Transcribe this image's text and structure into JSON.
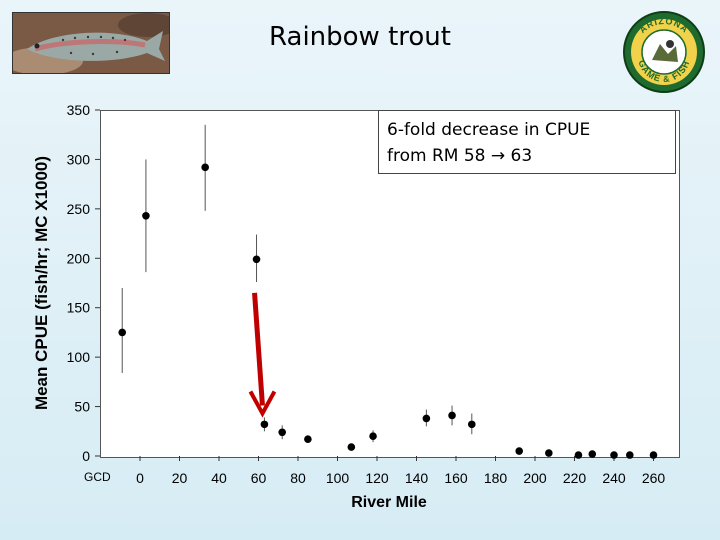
{
  "header": {
    "title": "Rainbow trout"
  },
  "callout": {
    "line1": "6-fold decrease in CPUE",
    "line2": "from RM 58 → 63"
  },
  "photo": {
    "icon": "rainbow-trout-photo"
  },
  "logo": {
    "icon": "arizona-game-and-fish-logo",
    "text": "ARIZONA GAME & FISH"
  },
  "chart_data": {
    "type": "scatter",
    "title": "Rainbow trout",
    "xlabel": "River Mile",
    "ylabel": "Mean CPUE (fish/hr; MC X1000)",
    "xlim": [
      -10,
      270
    ],
    "ylim": [
      0,
      350
    ],
    "xticks": [
      0,
      20,
      40,
      60,
      80,
      100,
      120,
      140,
      160,
      180,
      200,
      220,
      240,
      260
    ],
    "yticks": [
      0,
      50,
      100,
      150,
      200,
      250,
      300,
      350
    ],
    "extra_xtick_label": "GCD",
    "points": [
      {
        "x": -9,
        "y": 125,
        "lo": 84,
        "hi": 170
      },
      {
        "x": 3,
        "y": 243,
        "lo": 186,
        "hi": 300
      },
      {
        "x": 33,
        "y": 292,
        "lo": 248,
        "hi": 335
      },
      {
        "x": 59,
        "y": 199,
        "lo": 176,
        "hi": 224
      },
      {
        "x": 63,
        "y": 32,
        "lo": 25,
        "hi": 39
      },
      {
        "x": 72,
        "y": 24,
        "lo": 17,
        "hi": 31
      },
      {
        "x": 85,
        "y": 17,
        "lo": 14,
        "hi": 21
      },
      {
        "x": 107,
        "y": 9,
        "lo": 6,
        "hi": 12
      },
      {
        "x": 118,
        "y": 20,
        "lo": 14,
        "hi": 26
      },
      {
        "x": 145,
        "y": 38,
        "lo": 30,
        "hi": 47
      },
      {
        "x": 158,
        "y": 41,
        "lo": 31,
        "hi": 51
      },
      {
        "x": 168,
        "y": 32,
        "lo": 22,
        "hi": 43
      },
      {
        "x": 192,
        "y": 5,
        "lo": 4,
        "hi": 6
      },
      {
        "x": 207,
        "y": 3,
        "lo": 2,
        "hi": 4
      },
      {
        "x": 222,
        "y": 1,
        "lo": 0,
        "hi": 2
      },
      {
        "x": 229,
        "y": 2,
        "lo": 1,
        "hi": 3
      },
      {
        "x": 240,
        "y": 1,
        "lo": 0,
        "hi": 2
      },
      {
        "x": 248,
        "y": 1,
        "lo": 0,
        "hi": 2
      },
      {
        "x": 260,
        "y": 1,
        "lo": 0,
        "hi": 2
      }
    ],
    "annotation": {
      "type": "arrow",
      "color": "#c00000",
      "from": {
        "x": 58,
        "y": 165
      },
      "to": {
        "x": 62,
        "y": 43
      }
    },
    "colors": {
      "marker": "#000000",
      "errorbar": "#555555",
      "arrow": "#c00000"
    }
  }
}
